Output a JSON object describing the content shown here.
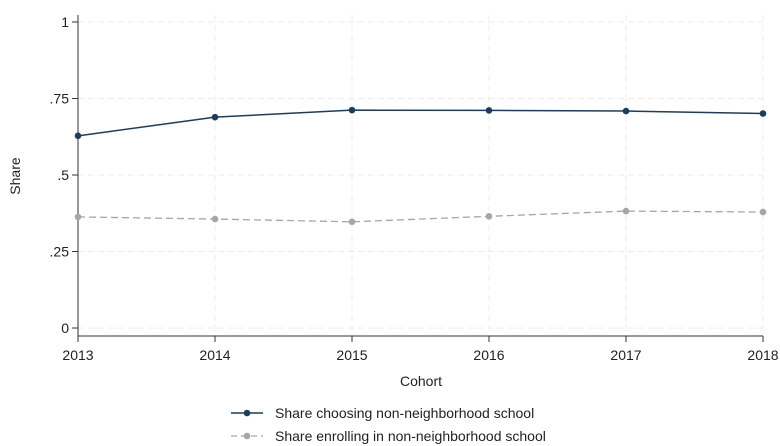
{
  "chart_data": {
    "type": "line",
    "title": "",
    "xlabel": "Cohort",
    "ylabel": "Share",
    "x": [
      2013,
      2014,
      2015,
      2016,
      2017,
      2018
    ],
    "xlim": [
      2013,
      2018
    ],
    "ylim": [
      0,
      1
    ],
    "x_ticks": [
      "2013",
      "2014",
      "2015",
      "2016",
      "2017",
      "2018"
    ],
    "y_ticks": [
      {
        "value": 0,
        "label": "0"
      },
      {
        "value": 0.25,
        "label": ".25"
      },
      {
        "value": 0.5,
        "label": ".5"
      },
      {
        "value": 0.75,
        "label": ".75"
      },
      {
        "value": 1,
        "label": "1"
      }
    ],
    "grid": true,
    "legend_position": "bottom",
    "series": [
      {
        "name": "Share choosing non-neighborhood school",
        "values": [
          0.628,
          0.689,
          0.712,
          0.711,
          0.709,
          0.701
        ],
        "color": "#1b3d5f",
        "dashed": false
      },
      {
        "name": "Share enrolling in non-neighborhood school",
        "values": [
          0.363,
          0.356,
          0.347,
          0.365,
          0.382,
          0.379
        ],
        "color": "#a6a6a6",
        "dashed": true
      }
    ]
  }
}
